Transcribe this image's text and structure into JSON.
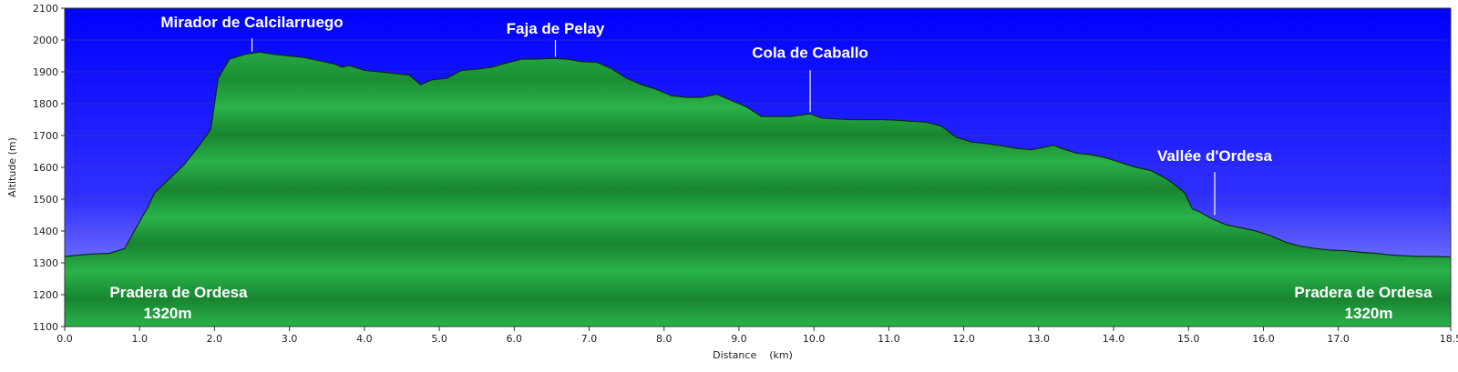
{
  "chart_data": {
    "type": "area",
    "title": "",
    "xlabel": "Distance    (km)",
    "ylabel": "Altitude (m)",
    "xlim": [
      0,
      18.5
    ],
    "ylim": [
      1100,
      2100
    ],
    "xticks": [
      0.0,
      1.0,
      2.0,
      3.0,
      4.0,
      5.0,
      6.0,
      7.0,
      8.0,
      9.0,
      10.0,
      11.0,
      12.0,
      13.0,
      14.0,
      15.0,
      16.0,
      17.0,
      18.5
    ],
    "xtick_labels": [
      "0.0",
      "1.0",
      "2.0",
      "3.0",
      "4.0",
      "5.0",
      "6.0",
      "7.0",
      "8.0",
      "9.0",
      "10.0",
      "11.0",
      "12.0",
      "13.0",
      "14.0",
      "15.0",
      "16.0",
      "17.0",
      "18.5"
    ],
    "yticks": [
      1100,
      1200,
      1300,
      1400,
      1500,
      1600,
      1700,
      1800,
      1900,
      2000,
      2100
    ],
    "ytick_labels": [
      "1100",
      "1200",
      "1300",
      "1400",
      "1500",
      "1600",
      "1700",
      "1800",
      "1900",
      "2000",
      "2100"
    ],
    "grid": true,
    "colors": {
      "sky_top": "#0000ff",
      "sky_bottom": "#a6a6ff",
      "terrain": "#1ea03c",
      "terrain_dark": "#147a2a",
      "outline": "#0a2a10",
      "grid": "#555555"
    },
    "x": [
      0.0,
      0.2,
      0.4,
      0.6,
      0.8,
      1.0,
      1.1,
      1.2,
      1.4,
      1.6,
      1.8,
      1.95,
      2.05,
      2.2,
      2.4,
      2.6,
      2.8,
      3.0,
      3.2,
      3.4,
      3.6,
      3.7,
      3.8,
      4.0,
      4.2,
      4.4,
      4.6,
      4.75,
      4.9,
      5.1,
      5.3,
      5.5,
      5.7,
      5.9,
      6.1,
      6.3,
      6.5,
      6.7,
      6.9,
      7.1,
      7.3,
      7.5,
      7.7,
      7.9,
      8.1,
      8.3,
      8.5,
      8.7,
      8.9,
      9.1,
      9.3,
      9.5,
      9.7,
      9.95,
      10.1,
      10.3,
      10.5,
      10.7,
      10.9,
      11.1,
      11.3,
      11.5,
      11.7,
      11.9,
      12.1,
      12.3,
      12.5,
      12.7,
      12.9,
      13.1,
      13.2,
      13.3,
      13.5,
      13.7,
      13.9,
      14.1,
      14.3,
      14.5,
      14.7,
      14.85,
      14.95,
      15.05,
      15.15,
      15.3,
      15.5,
      15.7,
      15.9,
      16.1,
      16.3,
      16.5,
      16.7,
      16.9,
      17.1,
      17.3,
      17.5,
      17.7,
      17.9,
      18.1,
      18.3,
      18.5
    ],
    "y": [
      1320,
      1325,
      1328,
      1330,
      1345,
      1430,
      1470,
      1520,
      1565,
      1610,
      1670,
      1720,
      1880,
      1940,
      1955,
      1962,
      1955,
      1950,
      1945,
      1935,
      1925,
      1915,
      1920,
      1905,
      1900,
      1895,
      1890,
      1860,
      1875,
      1880,
      1905,
      1908,
      1915,
      1928,
      1940,
      1940,
      1942,
      1940,
      1932,
      1930,
      1910,
      1880,
      1860,
      1845,
      1825,
      1820,
      1820,
      1830,
      1810,
      1790,
      1760,
      1760,
      1760,
      1768,
      1755,
      1752,
      1750,
      1750,
      1750,
      1748,
      1745,
      1742,
      1730,
      1695,
      1680,
      1675,
      1668,
      1660,
      1655,
      1665,
      1670,
      1660,
      1645,
      1640,
      1630,
      1615,
      1600,
      1590,
      1565,
      1540,
      1520,
      1470,
      1460,
      1440,
      1420,
      1410,
      1400,
      1385,
      1365,
      1352,
      1345,
      1340,
      1338,
      1333,
      1330,
      1325,
      1322,
      1320,
      1320,
      1318
    ]
  },
  "annotations": [
    {
      "text": "Mirador de Calcilarruego",
      "anchor_x": 2.5,
      "anchor_y": 1958,
      "line_top": 2005,
      "text_y": 2040
    },
    {
      "text": "Faja de Pelay",
      "anchor_x": 6.55,
      "anchor_y": 1942,
      "line_top": 2000,
      "text_y": 2020
    },
    {
      "text": "Cola de Caballo",
      "anchor_x": 9.95,
      "anchor_y": 1768,
      "line_top": 1905,
      "text_y": 1945
    },
    {
      "text": "Vallée d'Ordesa",
      "anchor_x": 15.35,
      "anchor_y": 1445,
      "line_top": 1585,
      "text_y": 1620
    }
  ],
  "endpoint_labels": {
    "start_name": "Pradera de Ordesa",
    "start_alt": "1320m",
    "end_name": "Pradera de Ordesa",
    "end_alt": "1320m"
  }
}
